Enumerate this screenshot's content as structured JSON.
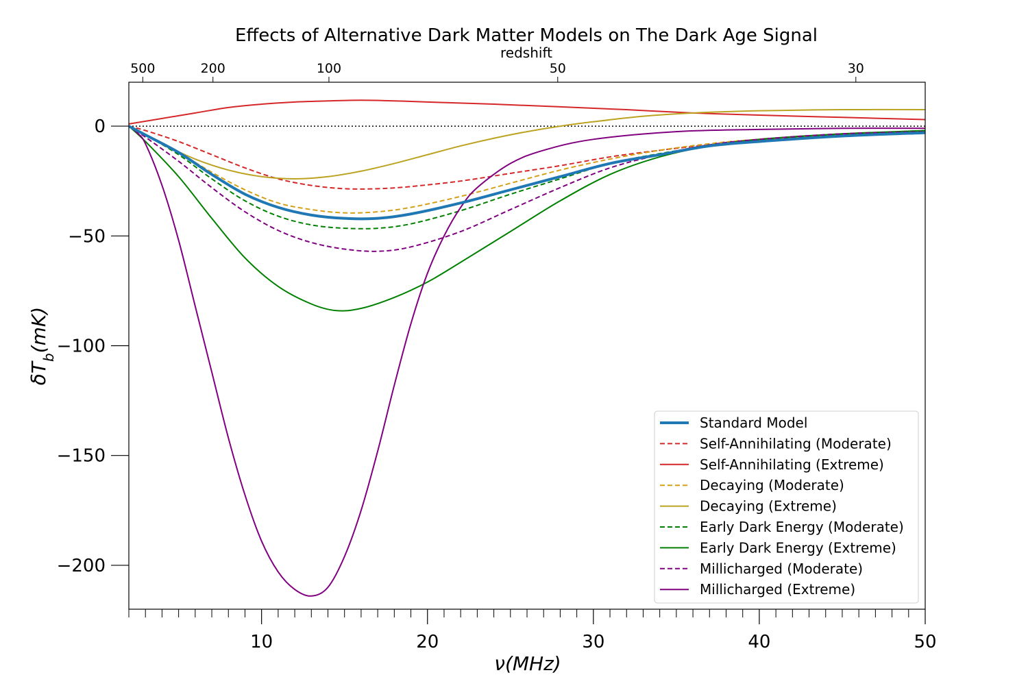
{
  "chart_data": {
    "type": "line",
    "title": "Effects of Alternative Dark Matter Models on The Dark Age Signal",
    "xlabel": "ν(MHz)",
    "ylabel": "δT_b(mK)",
    "ylabel_main": "δT",
    "ylabel_sub": "b",
    "ylabel_tail": "(mK)",
    "xlim": [
      2,
      50
    ],
    "ylim": [
      -220,
      20
    ],
    "x_ticks": [
      10,
      20,
      30,
      40,
      50
    ],
    "y_ticks": [
      0,
      -50,
      -100,
      -150,
      -200
    ],
    "y_tick_labels": [
      "0",
      "−50",
      "−100",
      "−150",
      "−200"
    ],
    "top_axis": {
      "label": "redshift",
      "ticks": [
        {
          "label": "500",
          "freq": 2.84
        },
        {
          "label": "200",
          "freq": 7.07
        },
        {
          "label": "100",
          "freq": 14.06
        },
        {
          "label": "50",
          "freq": 27.85
        },
        {
          "label": "30",
          "freq": 45.82
        }
      ]
    },
    "zero_line": "dotted",
    "legend_position": "lower right",
    "series": [
      {
        "name": "Standard Model",
        "color": "#1f77b4",
        "dashed": false,
        "width": 4,
        "points": [
          [
            2,
            0
          ],
          [
            3,
            -4
          ],
          [
            5,
            -12
          ],
          [
            7,
            -22
          ],
          [
            9,
            -31
          ],
          [
            11,
            -37
          ],
          [
            13,
            -40.5
          ],
          [
            15,
            -42
          ],
          [
            17,
            -42
          ],
          [
            19,
            -40
          ],
          [
            22,
            -35
          ],
          [
            25,
            -29
          ],
          [
            28,
            -23
          ],
          [
            31,
            -17
          ],
          [
            34,
            -13
          ],
          [
            37,
            -9
          ],
          [
            40,
            -7
          ],
          [
            45,
            -4.5
          ],
          [
            50,
            -3
          ]
        ]
      },
      {
        "name": "Self-Annihilating (Moderate)",
        "color": "#d62728",
        "dashed": true,
        "width": 2,
        "points": [
          [
            2,
            0
          ],
          [
            3,
            -2
          ],
          [
            5,
            -7
          ],
          [
            7,
            -13
          ],
          [
            9,
            -19
          ],
          [
            11,
            -24
          ],
          [
            13,
            -27
          ],
          [
            15,
            -28.5
          ],
          [
            17,
            -28.5
          ],
          [
            19,
            -27.5
          ],
          [
            22,
            -25
          ],
          [
            25,
            -21.5
          ],
          [
            28,
            -18
          ],
          [
            31,
            -14
          ],
          [
            34,
            -11
          ],
          [
            37,
            -8.5
          ],
          [
            40,
            -6.5
          ],
          [
            45,
            -4.5
          ],
          [
            50,
            -3
          ]
        ]
      },
      {
        "name": "Self-Annihilating (Extreme)",
        "color": "#d62728",
        "dashed": false,
        "width": 2,
        "points": [
          [
            2,
            1
          ],
          [
            4,
            3.5
          ],
          [
            6,
            6
          ],
          [
            8,
            8.5
          ],
          [
            10,
            10
          ],
          [
            12,
            11
          ],
          [
            14,
            11.5
          ],
          [
            16,
            11.8
          ],
          [
            18,
            11.5
          ],
          [
            20,
            11
          ],
          [
            24,
            10
          ],
          [
            28,
            8.8
          ],
          [
            32,
            7.5
          ],
          [
            36,
            6
          ],
          [
            40,
            5
          ],
          [
            45,
            4
          ],
          [
            50,
            3
          ]
        ]
      },
      {
        "name": "Decaying (Moderate)",
        "color": "#d4a017",
        "dashed": true,
        "width": 2,
        "points": [
          [
            2,
            0
          ],
          [
            3,
            -4
          ],
          [
            5,
            -12
          ],
          [
            7,
            -21
          ],
          [
            9,
            -29
          ],
          [
            11,
            -35
          ],
          [
            13,
            -38
          ],
          [
            15,
            -39.5
          ],
          [
            17,
            -39
          ],
          [
            19,
            -37
          ],
          [
            22,
            -32
          ],
          [
            25,
            -26
          ],
          [
            28,
            -20
          ],
          [
            31,
            -15
          ],
          [
            34,
            -11
          ],
          [
            37,
            -8
          ],
          [
            40,
            -6
          ],
          [
            45,
            -4
          ],
          [
            50,
            -2.5
          ]
        ]
      },
      {
        "name": "Decaying (Extreme)",
        "color": "#bba321",
        "dashed": false,
        "width": 2,
        "points": [
          [
            2,
            0
          ],
          [
            4,
            -8
          ],
          [
            6,
            -15
          ],
          [
            8,
            -20
          ],
          [
            10,
            -23
          ],
          [
            12,
            -24
          ],
          [
            14,
            -23
          ],
          [
            16,
            -20.5
          ],
          [
            18,
            -17
          ],
          [
            20,
            -13
          ],
          [
            22,
            -9
          ],
          [
            24,
            -5.5
          ],
          [
            26,
            -2.5
          ],
          [
            28,
            0
          ],
          [
            30,
            2
          ],
          [
            33,
            4.5
          ],
          [
            36,
            6
          ],
          [
            40,
            7
          ],
          [
            45,
            7.5
          ],
          [
            50,
            7.5
          ]
        ]
      },
      {
        "name": "Early Dark Energy (Moderate)",
        "color": "#008000",
        "dashed": true,
        "width": 2,
        "points": [
          [
            2,
            0
          ],
          [
            3,
            -4
          ],
          [
            5,
            -13
          ],
          [
            7,
            -24
          ],
          [
            9,
            -34
          ],
          [
            11,
            -41
          ],
          [
            13,
            -45
          ],
          [
            15,
            -46.5
          ],
          [
            17,
            -46.5
          ],
          [
            19,
            -44.5
          ],
          [
            22,
            -38.5
          ],
          [
            25,
            -31
          ],
          [
            28,
            -24
          ],
          [
            31,
            -17
          ],
          [
            34,
            -12.5
          ],
          [
            37,
            -9
          ],
          [
            40,
            -6.5
          ],
          [
            45,
            -4
          ],
          [
            50,
            -2.5
          ]
        ]
      },
      {
        "name": "Early Dark Energy (Extreme)",
        "color": "#008000",
        "dashed": false,
        "width": 2,
        "points": [
          [
            2,
            0
          ],
          [
            3,
            -7
          ],
          [
            5,
            -23
          ],
          [
            7,
            -42
          ],
          [
            9,
            -60
          ],
          [
            11,
            -73
          ],
          [
            13,
            -81
          ],
          [
            14.5,
            -84
          ],
          [
            16,
            -83
          ],
          [
            18,
            -78
          ],
          [
            20,
            -71
          ],
          [
            22,
            -62
          ],
          [
            25,
            -48
          ],
          [
            28,
            -34
          ],
          [
            31,
            -22
          ],
          [
            34,
            -14
          ],
          [
            37,
            -9
          ],
          [
            40,
            -6
          ],
          [
            45,
            -3.5
          ],
          [
            50,
            -2
          ]
        ]
      },
      {
        "name": "Millicharged (Moderate)",
        "color": "#800080",
        "dashed": true,
        "width": 2,
        "points": [
          [
            2,
            0
          ],
          [
            3,
            -5
          ],
          [
            5,
            -16
          ],
          [
            7,
            -28
          ],
          [
            9,
            -39
          ],
          [
            11,
            -47.5
          ],
          [
            13,
            -53
          ],
          [
            15,
            -56
          ],
          [
            17,
            -57
          ],
          [
            19,
            -55
          ],
          [
            22,
            -48
          ],
          [
            25,
            -38
          ],
          [
            28,
            -28
          ],
          [
            31,
            -19
          ],
          [
            34,
            -13
          ],
          [
            37,
            -8.5
          ],
          [
            40,
            -6
          ],
          [
            45,
            -3.5
          ],
          [
            50,
            -2.5
          ]
        ]
      },
      {
        "name": "Millicharged (Extreme)",
        "color": "#800080",
        "dashed": false,
        "width": 2,
        "points": [
          [
            2,
            0
          ],
          [
            2.5,
            -3
          ],
          [
            3,
            -8
          ],
          [
            4,
            -27
          ],
          [
            5,
            -52
          ],
          [
            6,
            -82
          ],
          [
            7,
            -112
          ],
          [
            8,
            -142
          ],
          [
            9,
            -168
          ],
          [
            10,
            -189
          ],
          [
            11,
            -203
          ],
          [
            12,
            -211
          ],
          [
            13,
            -214
          ],
          [
            14,
            -210
          ],
          [
            15,
            -196
          ],
          [
            16,
            -175
          ],
          [
            17,
            -148
          ],
          [
            18,
            -118
          ],
          [
            19,
            -90
          ],
          [
            20,
            -67
          ],
          [
            21,
            -50
          ],
          [
            22,
            -37
          ],
          [
            23,
            -28
          ],
          [
            25,
            -17
          ],
          [
            27,
            -11
          ],
          [
            30,
            -6
          ],
          [
            35,
            -2.5
          ],
          [
            40,
            -1.5
          ],
          [
            45,
            -1
          ],
          [
            50,
            -1
          ]
        ]
      }
    ]
  }
}
